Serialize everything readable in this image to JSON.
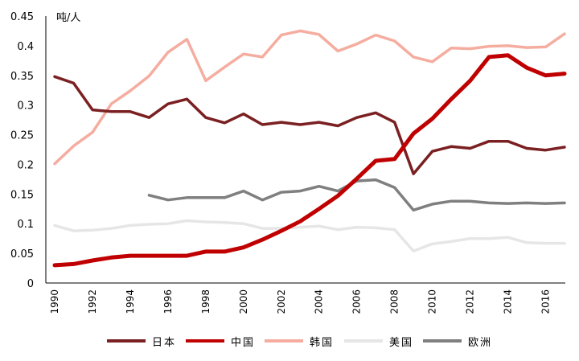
{
  "chart_data": {
    "type": "line",
    "unit_label": "吨/人",
    "ylim": [
      0,
      0.45
    ],
    "yticks": [
      "0.45",
      "0.4",
      "0.35",
      "0.3",
      "0.25",
      "0.2",
      "0.15",
      "0.1",
      "0.05",
      "0"
    ],
    "xlim": [
      1990,
      2017
    ],
    "xticks": [
      "1990",
      "1992",
      "1994",
      "1996",
      "1998",
      "2000",
      "2002",
      "2004",
      "2006",
      "2008",
      "2010",
      "2012",
      "2014",
      "2016"
    ],
    "grid": false,
    "legend_position": "bottom",
    "series": [
      {
        "name": "日本",
        "color": "#7b2022",
        "x": [
          1990,
          1991,
          1992,
          1993,
          1994,
          1995,
          1996,
          1997,
          1998,
          1999,
          2000,
          2001,
          2002,
          2003,
          2004,
          2005,
          2006,
          2007,
          2008,
          2009,
          2010,
          2011,
          2012,
          2013,
          2014,
          2015,
          2016,
          2017
        ],
        "values": [
          0.348,
          0.337,
          0.292,
          0.289,
          0.289,
          0.279,
          0.302,
          0.31,
          0.279,
          0.27,
          0.285,
          0.267,
          0.271,
          0.267,
          0.271,
          0.265,
          0.279,
          0.287,
          0.271,
          0.184,
          0.222,
          0.23,
          0.227,
          0.239,
          0.239,
          0.227,
          0.224,
          0.229
        ]
      },
      {
        "name": "中国",
        "color": "#c00000",
        "x": [
          1990,
          1991,
          1992,
          1993,
          1994,
          1995,
          1996,
          1997,
          1998,
          1999,
          2000,
          2001,
          2002,
          2003,
          2004,
          2005,
          2006,
          2007,
          2008,
          2009,
          2010,
          2011,
          2012,
          2013,
          2014,
          2015,
          2016,
          2017
        ],
        "values": [
          0.03,
          0.032,
          0.038,
          0.043,
          0.046,
          0.046,
          0.046,
          0.046,
          0.053,
          0.053,
          0.06,
          0.073,
          0.088,
          0.104,
          0.125,
          0.147,
          0.176,
          0.206,
          0.209,
          0.252,
          0.277,
          0.31,
          0.341,
          0.381,
          0.384,
          0.363,
          0.35,
          0.353
        ]
      },
      {
        "name": "韩国",
        "color": "#f5ada0",
        "x": [
          1990,
          1991,
          1992,
          1993,
          1994,
          1995,
          1996,
          1997,
          1998,
          1999,
          2000,
          2001,
          2002,
          2003,
          2004,
          2005,
          2006,
          2007,
          2008,
          2009,
          2010,
          2011,
          2012,
          2013,
          2014,
          2015,
          2016,
          2017
        ],
        "values": [
          0.201,
          0.231,
          0.254,
          0.302,
          0.324,
          0.349,
          0.389,
          0.411,
          0.341,
          0.364,
          0.386,
          0.381,
          0.418,
          0.425,
          0.419,
          0.391,
          0.403,
          0.418,
          0.408,
          0.381,
          0.373,
          0.396,
          0.395,
          0.399,
          0.4,
          0.397,
          0.398,
          0.42
        ]
      },
      {
        "name": "美国",
        "color": "#e6e6e6",
        "x": [
          1990,
          1991,
          1992,
          1993,
          1994,
          1995,
          1996,
          1997,
          1998,
          1999,
          2000,
          2001,
          2002,
          2003,
          2004,
          2005,
          2006,
          2007,
          2008,
          2009,
          2010,
          2011,
          2012,
          2013,
          2014,
          2015,
          2016,
          2017
        ],
        "values": [
          0.097,
          0.088,
          0.089,
          0.092,
          0.097,
          0.099,
          0.1,
          0.105,
          0.103,
          0.102,
          0.1,
          0.092,
          0.092,
          0.094,
          0.096,
          0.09,
          0.094,
          0.093,
          0.09,
          0.054,
          0.066,
          0.07,
          0.075,
          0.075,
          0.077,
          0.068,
          0.067,
          0.067
        ]
      },
      {
        "name": "欧洲",
        "color": "#7f7f7f",
        "x": [
          1995,
          1996,
          1997,
          1998,
          1999,
          2000,
          2001,
          2002,
          2003,
          2004,
          2005,
          2006,
          2007,
          2008,
          2009,
          2010,
          2011,
          2012,
          2013,
          2014,
          2015,
          2016,
          2017
        ],
        "values": [
          0.148,
          0.14,
          0.144,
          0.144,
          0.144,
          0.155,
          0.14,
          0.153,
          0.155,
          0.163,
          0.155,
          0.172,
          0.174,
          0.161,
          0.123,
          0.133,
          0.138,
          0.138,
          0.135,
          0.134,
          0.135,
          0.134,
          0.135
        ]
      }
    ]
  }
}
